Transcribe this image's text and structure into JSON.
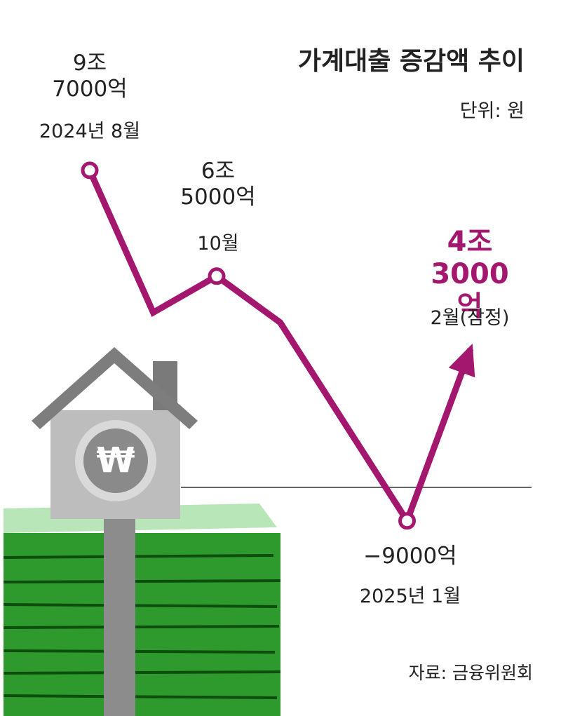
{
  "chart_data": {
    "type": "line",
    "title": "가계대출 증감액 추이",
    "unit": "단위: 원",
    "source": "자료: 금융위원회",
    "icon": "₩",
    "categories": [
      "2024년 8월",
      null,
      "10월",
      null,
      null,
      "2025년 1월",
      "2월(잠정)"
    ],
    "values": [
      97000,
      54000,
      65000,
      51000,
      21000,
      -9000,
      43000
    ],
    "value_labels": [
      "9조\n7000억",
      null,
      "6조\n5000억",
      null,
      null,
      "−9000억",
      "4조\n3000억"
    ],
    "color": "#a3176f",
    "ylim": [
      -68000,
      148500
    ]
  }
}
